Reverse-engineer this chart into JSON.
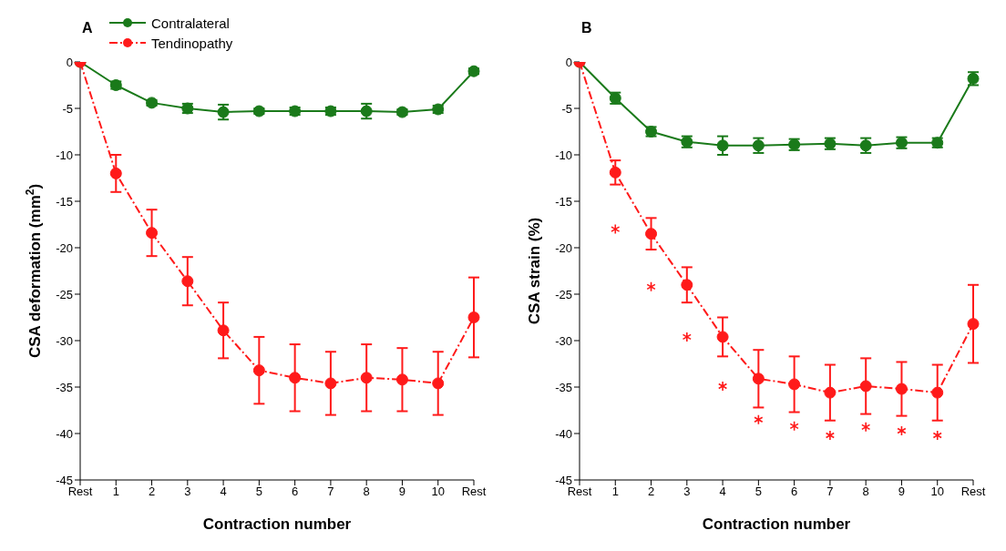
{
  "chart_data": [
    {
      "type": "line",
      "title": "A",
      "xlabel": "Contraction number",
      "ylabel": "CSA deformation (mm$^{2}$)",
      "categories": [
        "Rest",
        "1",
        "2",
        "3",
        "4",
        "5",
        "6",
        "7",
        "8",
        "9",
        "10",
        "Rest"
      ],
      "ylim": [
        -45,
        0
      ],
      "yticks": [
        0,
        -5,
        -10,
        -15,
        -20,
        -25,
        -30,
        -35,
        -40,
        -45
      ],
      "grid": false,
      "legend": "top left",
      "marker": "circle",
      "series": [
        {
          "name": "Contralateral",
          "color": "#1a7a1a",
          "line_style": "solid",
          "values": [
            0,
            -2.5,
            -4.4,
            -5.0,
            -5.4,
            -5.3,
            -5.3,
            -5.3,
            -5.3,
            -5.4,
            -5.1,
            -1.0
          ],
          "errors": [
            null,
            0.4,
            0.3,
            0.5,
            0.8,
            0.3,
            0.4,
            0.4,
            0.8,
            0.3,
            0.4,
            0.3
          ]
        },
        {
          "name": "Tendinopathy",
          "color": "#ff1a1a",
          "line_style": "dashed",
          "values": [
            0,
            -12.0,
            -18.4,
            -23.6,
            -28.9,
            -33.2,
            -34.0,
            -34.6,
            -34.0,
            -34.2,
            -34.6,
            -27.5
          ],
          "errors": [
            null,
            2.0,
            2.5,
            2.6,
            3.0,
            3.6,
            3.6,
            3.4,
            3.6,
            3.4,
            3.4,
            4.3
          ]
        }
      ]
    },
    {
      "type": "line",
      "title": "B",
      "xlabel": "Contraction number",
      "ylabel": "CSA strain (%)",
      "categories": [
        "Rest",
        "1",
        "2",
        "3",
        "4",
        "5",
        "6",
        "7",
        "8",
        "9",
        "10",
        "Rest"
      ],
      "ylim": [
        -45,
        0
      ],
      "yticks": [
        0,
        -5,
        -10,
        -15,
        -20,
        -25,
        -30,
        -35,
        -40,
        -45
      ],
      "grid": false,
      "legend": false,
      "marker": "circle",
      "series": [
        {
          "color": "#1a7a1a",
          "line_style": "solid",
          "values": [
            0,
            -3.9,
            -7.5,
            -8.6,
            -9.0,
            -9.0,
            -8.9,
            -8.8,
            -9.0,
            -8.7,
            -8.7,
            -1.8
          ],
          "errors": [
            null,
            0.6,
            0.5,
            0.6,
            1.0,
            0.8,
            0.6,
            0.6,
            0.8,
            0.6,
            0.5,
            0.7
          ]
        },
        {
          "color": "#ff1a1a",
          "line_style": "dashed",
          "values": [
            0,
            -11.9,
            -18.5,
            -24.0,
            -29.6,
            -34.1,
            -34.7,
            -35.6,
            -34.9,
            -35.2,
            -35.6,
            -28.2
          ],
          "errors": [
            null,
            1.3,
            1.7,
            1.9,
            2.1,
            3.1,
            3.0,
            3.0,
            3.0,
            2.9,
            3.0,
            4.2
          ]
        },
        {
          "type": "scatter",
          "color": "#ff1a1a",
          "marker": "cross",
          "values": [
            null,
            -18.0,
            -24.2,
            -29.6,
            -34.9,
            -38.5,
            -39.2,
            -40.2,
            -39.3,
            -39.7,
            -40.2,
            null
          ]
        }
      ]
    }
  ]
}
